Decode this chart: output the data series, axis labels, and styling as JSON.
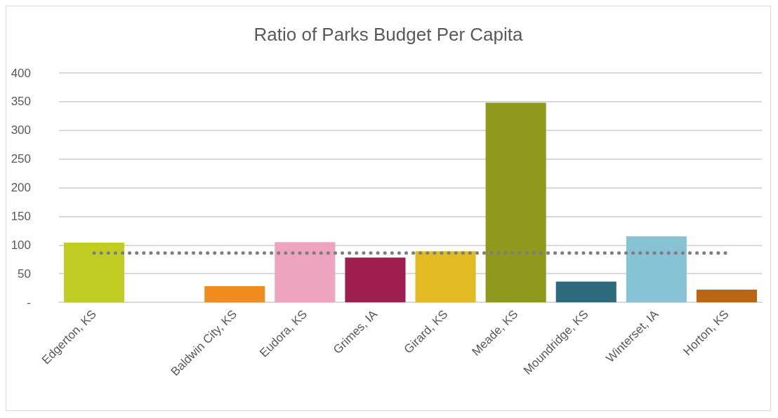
{
  "chart_data": {
    "type": "bar",
    "title": "Ratio of Parks Budget Per Capita",
    "categories": [
      "Edgerton, KS",
      null,
      "Baldwin City, KS",
      "Eudora, KS",
      "Grimes, IA",
      "Girard, KS",
      "Meade, KS",
      "Moundridge, KS",
      "Winterset, IA",
      "Horton, KS"
    ],
    "series": [
      {
        "values": [
          104,
          null,
          28,
          105,
          78,
          89,
          348,
          36,
          115,
          22
        ],
        "colors": [
          "#c1cd23",
          "#888888",
          "#f08c1e",
          "#eea4be",
          "#9e1f4f",
          "#e2bb22",
          "#8f991c",
          "#2c6a7c",
          "#87c3d5",
          "#bb6510"
        ]
      },
      {
        "type": "line",
        "color": "#7f7f7f",
        "line_style": "dotted",
        "marker": "none",
        "values": [
          86,
          86,
          86,
          86,
          86,
          86,
          86,
          86,
          86,
          86
        ]
      }
    ],
    "ylim": [
      0,
      400
    ],
    "yticks": [
      {
        "value": 0,
        "label": "-"
      },
      50,
      100,
      150,
      200,
      250,
      300,
      350,
      400
    ],
    "grid": "y"
  }
}
